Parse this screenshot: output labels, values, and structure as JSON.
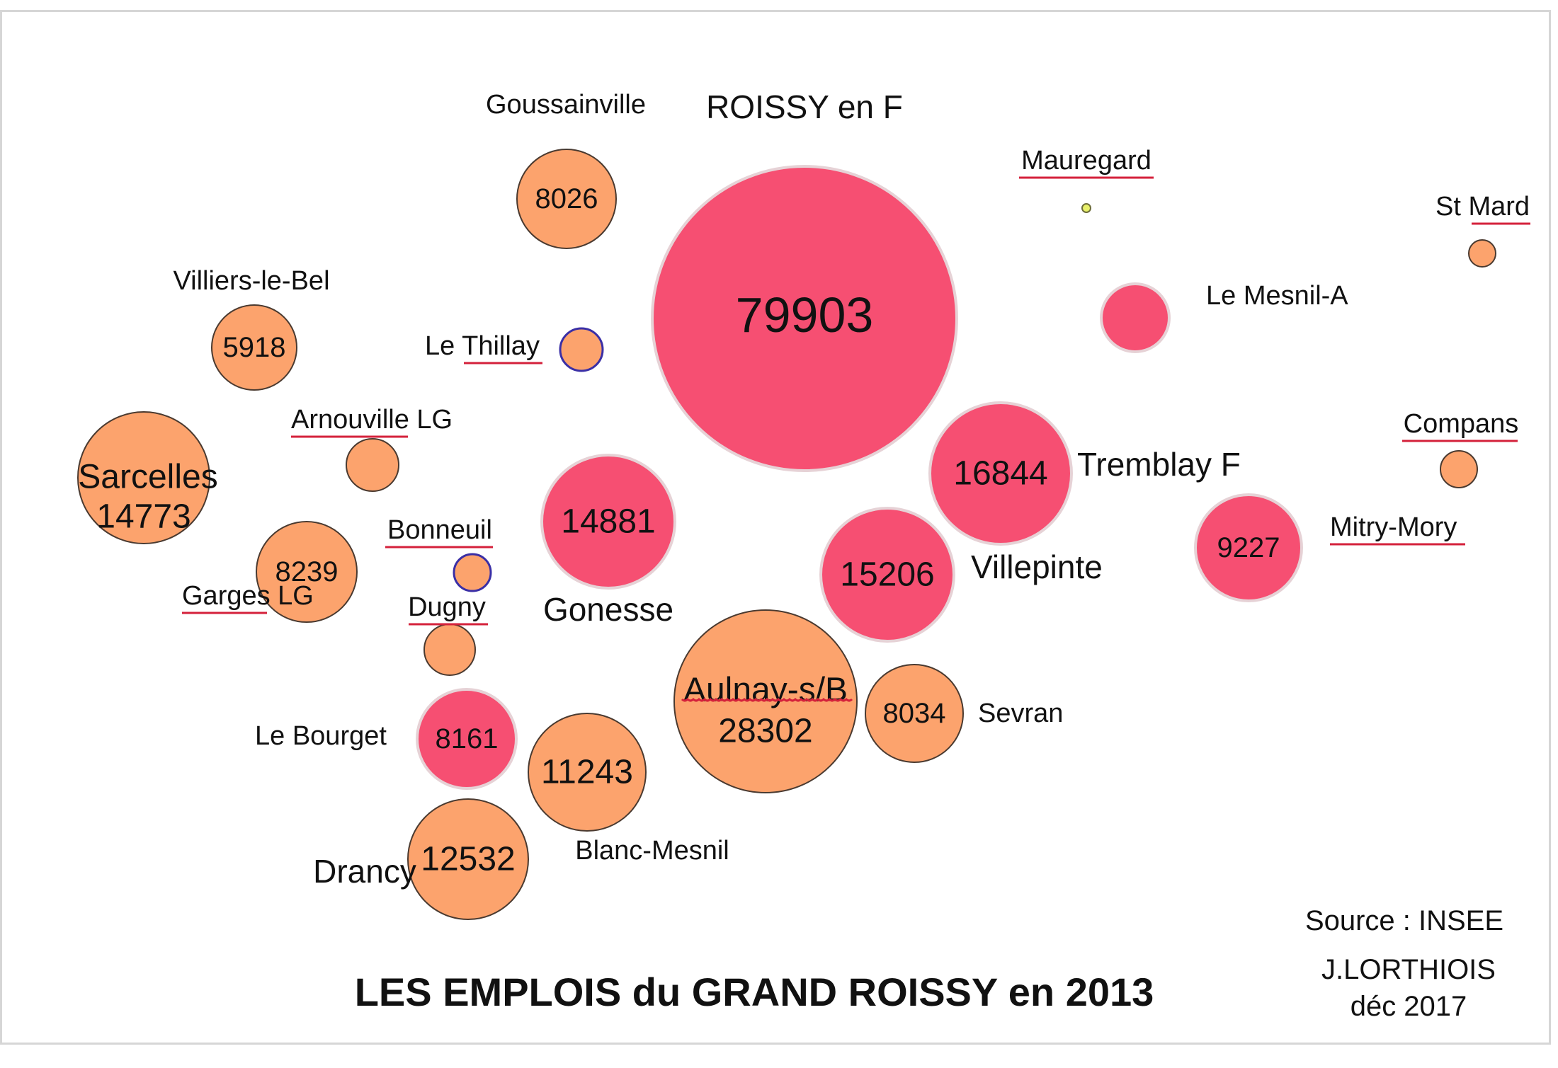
{
  "chart_data": {
    "type": "bubble",
    "title": "LES EMPLOIS du GRAND ROISSY en 2013",
    "source": "Source : INSEE",
    "author": "J.LORTHIOIS",
    "date": "déc 2017",
    "colors": {
      "pink": "#f64f72",
      "orange": "#fca36d",
      "small_blue_outline": "#3a2fa6",
      "tiny_yellow": "#e8f06a"
    },
    "bubbles": [
      {
        "name": "ROISSY en F",
        "value": 79903,
        "value_label": "79903",
        "color": "pink"
      },
      {
        "name": "Goussainville",
        "value": 8026,
        "value_label": "8026",
        "color": "orange"
      },
      {
        "name": "Mauregard",
        "value": null,
        "value_label": "",
        "color": "tiny_yellow",
        "underlined": true
      },
      {
        "name": "St Mard",
        "value": null,
        "value_label": "",
        "color": "orange",
        "underlined": true
      },
      {
        "name": "Villiers-le-Bel",
        "value": 5918,
        "value_label": "5918",
        "color": "orange"
      },
      {
        "name": "Le Thillay",
        "value": null,
        "value_label": "",
        "color": "orange",
        "outline": "small_blue_outline",
        "underlined": true
      },
      {
        "name": "Le Mesnil-A",
        "value": null,
        "value_label": "",
        "color": "pink"
      },
      {
        "name": "Arnouville LG",
        "value": null,
        "value_label": "",
        "color": "orange",
        "underlined": true
      },
      {
        "name": "Sarcelles",
        "value": 14773,
        "value_label": "14773",
        "color": "orange"
      },
      {
        "name": "Gonesse",
        "value": 14881,
        "value_label": "14881",
        "color": "pink"
      },
      {
        "name": "Tremblay F",
        "value": 16844,
        "value_label": "16844",
        "color": "pink"
      },
      {
        "name": "Compans",
        "value": null,
        "value_label": "",
        "color": "orange",
        "underlined": true
      },
      {
        "name": "Garges LG",
        "value": 8239,
        "value_label": "8239",
        "color": "orange",
        "underlined": true
      },
      {
        "name": "Bonneuil",
        "value": null,
        "value_label": "",
        "color": "orange",
        "outline": "small_blue_outline",
        "underlined": true
      },
      {
        "name": "Villepinte",
        "value": 15206,
        "value_label": "15206",
        "color": "pink"
      },
      {
        "name": "Mitry-Mory",
        "value": 9227,
        "value_label": "9227",
        "color": "pink",
        "underlined": true
      },
      {
        "name": "Dugny",
        "value": null,
        "value_label": "",
        "color": "orange",
        "underlined": true
      },
      {
        "name": "Aulnay-s/B",
        "value": 28302,
        "value_label": "28302",
        "color": "orange",
        "underlined": true
      },
      {
        "name": "Sevran",
        "value": 8034,
        "value_label": "8034",
        "color": "orange"
      },
      {
        "name": "Le Bourget",
        "value": 8161,
        "value_label": "8161",
        "color": "pink"
      },
      {
        "name": "Blanc-Mesnil",
        "value": 11243,
        "value_label": "11243",
        "color": "orange"
      },
      {
        "name": "Drancy",
        "value": 12532,
        "value_label": "12532",
        "color": "orange"
      }
    ]
  }
}
